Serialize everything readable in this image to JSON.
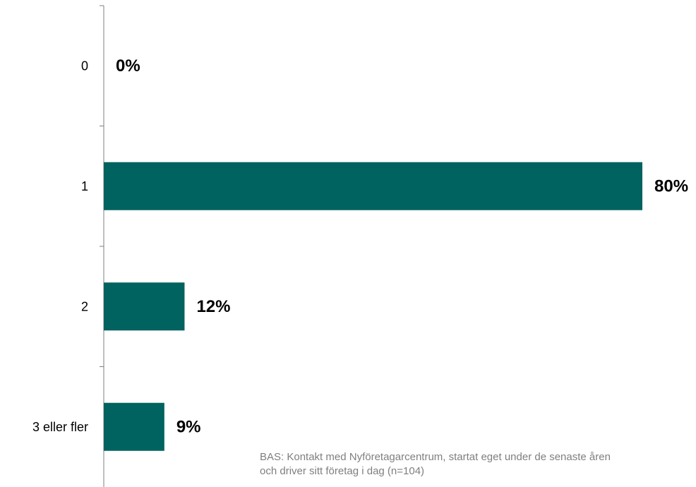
{
  "chart_data": {
    "type": "bar",
    "orientation": "horizontal",
    "categories": [
      "0",
      "1",
      "2",
      "3 eller fler"
    ],
    "values": [
      0,
      80,
      12,
      9
    ],
    "data_labels": [
      "0%",
      "80%",
      "12%",
      "9%"
    ],
    "unit": "%",
    "xlim": [
      0,
      80
    ],
    "title": "",
    "xlabel": "",
    "ylabel": "",
    "grid": false,
    "legend": "none",
    "bar_color": "#00635F"
  },
  "footnote": {
    "line1": "BAS: Kontakt med Nyföretagarcentrum, startat eget under de senaste åren",
    "line2": "och driver sitt företag i dag  (n=104)"
  }
}
